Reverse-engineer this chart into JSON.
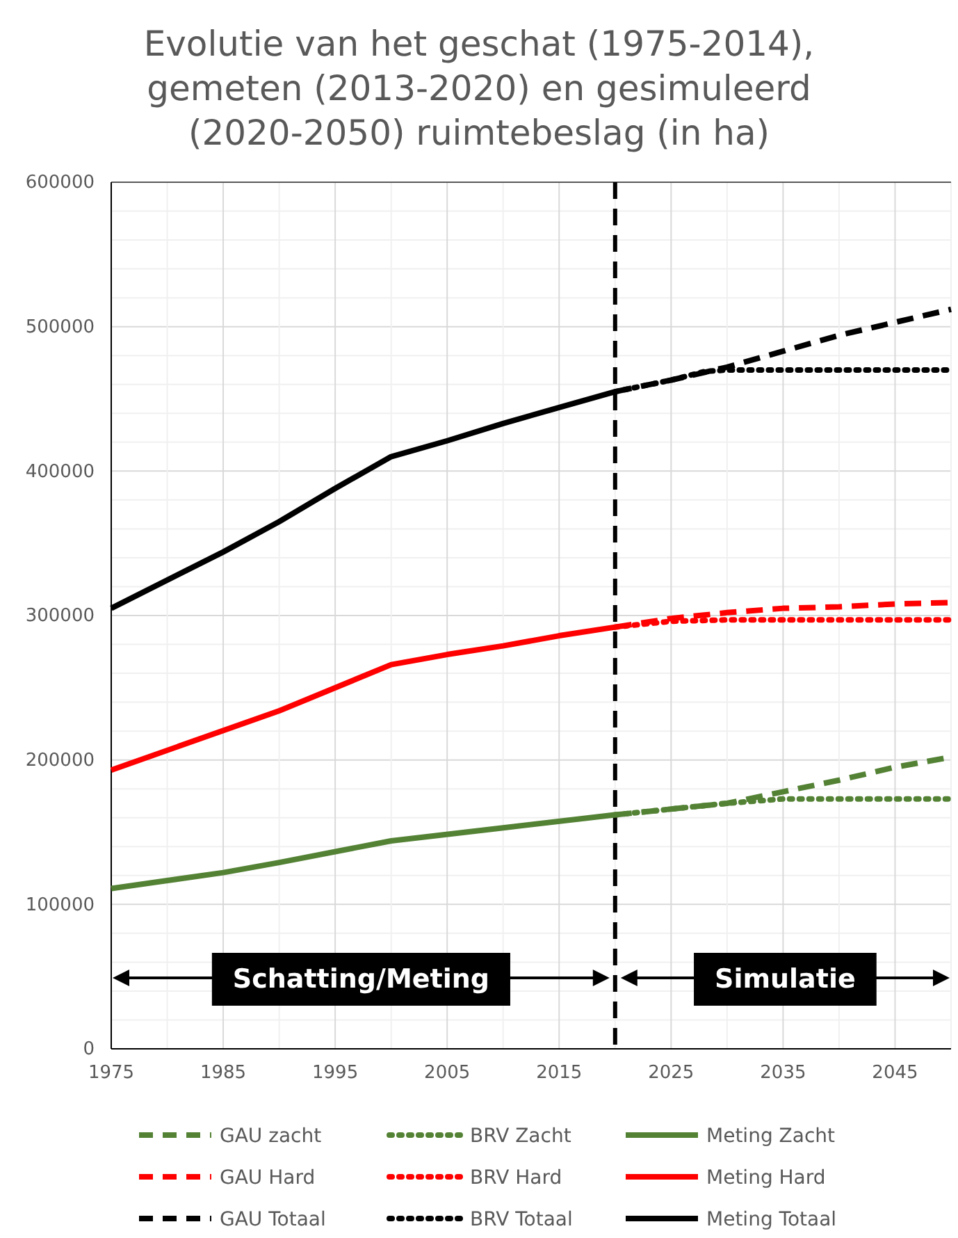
{
  "chart_data": {
    "type": "line",
    "title": "Evolutie van het geschat (1975-2014), gemeten (2013-2020) en gesimuleerd (2020-2050) ruimtebeslag (in ha)",
    "xlim": [
      1975,
      2050
    ],
    "xticks": [
      1975,
      1985,
      1995,
      2005,
      2015,
      2025,
      2035,
      2045
    ],
    "ylim": [
      0,
      600000
    ],
    "yticks": [
      0,
      100000,
      200000,
      300000,
      400000,
      500000,
      600000
    ],
    "grid": true,
    "legend": "bottom",
    "series": [
      {
        "name": "GAU zacht",
        "color": "#548235",
        "line_style": "dashed",
        "x": [
          2020,
          2025,
          2030,
          2035,
          2040,
          2045,
          2050
        ],
        "values": [
          162000,
          166000,
          170000,
          178000,
          186000,
          195000,
          202000
        ]
      },
      {
        "name": "BRV Zacht",
        "color": "#548235",
        "line_style": "dotted",
        "x": [
          2020,
          2025,
          2030,
          2035,
          2040,
          2045,
          2050
        ],
        "values": [
          162000,
          166000,
          170000,
          173000,
          173000,
          173000,
          173000
        ]
      },
      {
        "name": "Meting Zacht",
        "color": "#548235",
        "line_style": "solid",
        "x": [
          1975,
          1985,
          1990,
          2000,
          2010,
          2020
        ],
        "values": [
          111000,
          122000,
          129000,
          144000,
          153000,
          162000
        ]
      },
      {
        "name": "GAU Hard",
        "color": "#ff0000",
        "line_style": "dashed",
        "x": [
          2020,
          2025,
          2030,
          2035,
          2040,
          2045,
          2050
        ],
        "values": [
          292000,
          298000,
          302000,
          305000,
          306000,
          308000,
          309000
        ]
      },
      {
        "name": "BRV Hard",
        "color": "#ff0000",
        "line_style": "dotted",
        "x": [
          2020,
          2025,
          2030,
          2035,
          2040,
          2045,
          2050
        ],
        "values": [
          292000,
          296000,
          297000,
          297000,
          297000,
          297000,
          297000
        ]
      },
      {
        "name": "Meting Hard",
        "color": "#ff0000",
        "line_style": "solid",
        "x": [
          1975,
          1990,
          2000,
          2005,
          2010,
          2015,
          2020
        ],
        "values": [
          193000,
          234000,
          266000,
          273000,
          279000,
          286000,
          292000
        ]
      },
      {
        "name": "GAU Totaal",
        "color": "#000000",
        "line_style": "dashed",
        "x": [
          2020,
          2025,
          2030,
          2035,
          2040,
          2045,
          2050
        ],
        "values": [
          455000,
          463000,
          472000,
          483000,
          494000,
          503000,
          512000
        ]
      },
      {
        "name": "BRV Totaal",
        "color": "#000000",
        "line_style": "dotted",
        "x": [
          2020,
          2025,
          2028,
          2030,
          2035,
          2040,
          2045,
          2050
        ],
        "values": [
          455000,
          463000,
          469000,
          470000,
          470000,
          470000,
          470000,
          470000
        ]
      },
      {
        "name": "Meting Totaal",
        "color": "#000000",
        "line_style": "solid",
        "x": [
          1975,
          1985,
          1990,
          1995,
          2000,
          2005,
          2010,
          2015,
          2020
        ],
        "values": [
          305000,
          344000,
          365000,
          388000,
          410000,
          421000,
          433000,
          444000,
          455000
        ]
      }
    ],
    "ref_lines": [
      {
        "axis": "x",
        "value": 2020,
        "color": "#000000",
        "line_style": "dashed"
      }
    ],
    "annotations": [
      "Schatting/Meting",
      "Simulatie"
    ]
  }
}
